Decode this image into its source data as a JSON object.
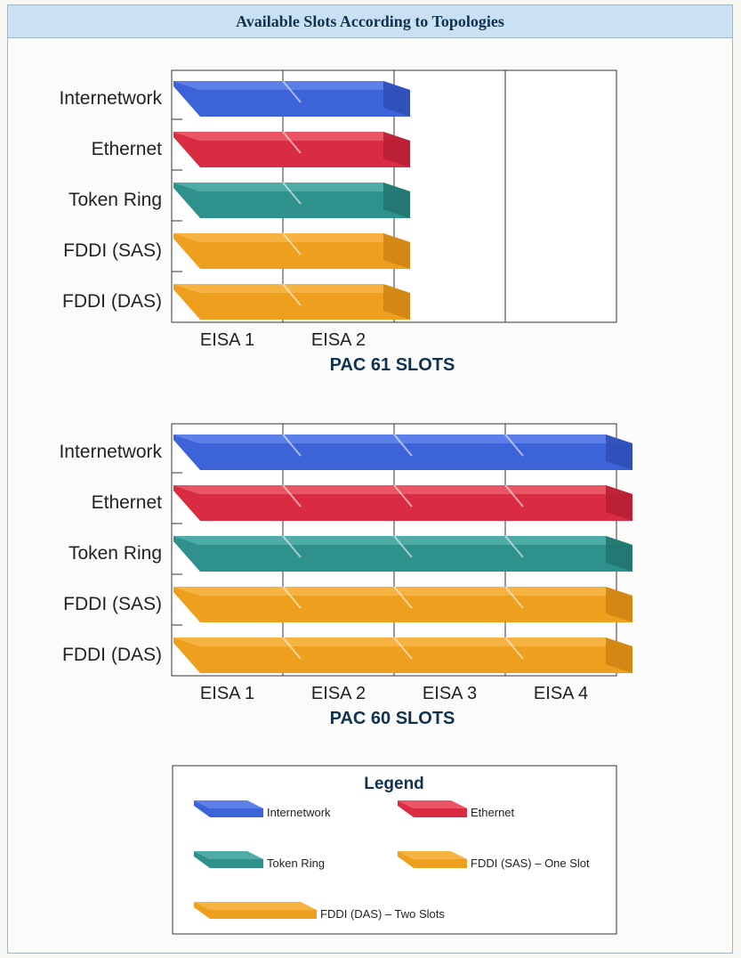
{
  "header": {
    "title": "Available Slots According to Topologies"
  },
  "colors": {
    "internetwork": {
      "top": "#5b80e8",
      "face": "#3d63d8",
      "side": "#2f4fb8"
    },
    "ethernet": {
      "top": "#ea5566",
      "face": "#d92c43",
      "side": "#b81f35"
    },
    "token_ring": {
      "top": "#4eaba5",
      "face": "#2f918b",
      "side": "#237570"
    },
    "fddi": {
      "top": "#f6b341",
      "face": "#ee9f1e",
      "side": "#d08413"
    }
  },
  "chart_data": [
    {
      "type": "diagram",
      "caption": "PAC 61 SLOTS",
      "slots": [
        "EISA 1",
        "EISA 2",
        "",
        ""
      ],
      "rows": [
        {
          "label": "Internetwork",
          "color": "internetwork",
          "occupied": 2
        },
        {
          "label": "Ethernet",
          "color": "ethernet",
          "occupied": 2
        },
        {
          "label": "Token Ring",
          "color": "token_ring",
          "occupied": 2
        },
        {
          "label": "FDDI (SAS)",
          "color": "fddi",
          "occupied": 2
        },
        {
          "label": "FDDI (DAS)",
          "color": "fddi",
          "occupied": 2
        }
      ]
    },
    {
      "type": "diagram",
      "caption": "PAC 60 SLOTS",
      "slots": [
        "EISA 1",
        "EISA 2",
        "EISA 3",
        "EISA 4"
      ],
      "rows": [
        {
          "label": "Internetwork",
          "color": "internetwork",
          "occupied": 4
        },
        {
          "label": "Ethernet",
          "color": "ethernet",
          "occupied": 4
        },
        {
          "label": "Token Ring",
          "color": "token_ring",
          "occupied": 4
        },
        {
          "label": "FDDI (SAS)",
          "color": "fddi",
          "occupied": 4
        },
        {
          "label": "FDDI (DAS)",
          "color": "fddi",
          "occupied": 4
        }
      ]
    }
  ],
  "legend": {
    "title": "Legend",
    "items": [
      {
        "label": "Internetwork",
        "color": "internetwork"
      },
      {
        "label": "Ethernet",
        "color": "ethernet"
      },
      {
        "label": "Token Ring",
        "color": "token_ring"
      },
      {
        "label": "FDDI (SAS) – One Slot",
        "color": "fddi"
      },
      {
        "label": "FDDI (DAS) – Two Slots",
        "color": "fddi"
      }
    ]
  }
}
